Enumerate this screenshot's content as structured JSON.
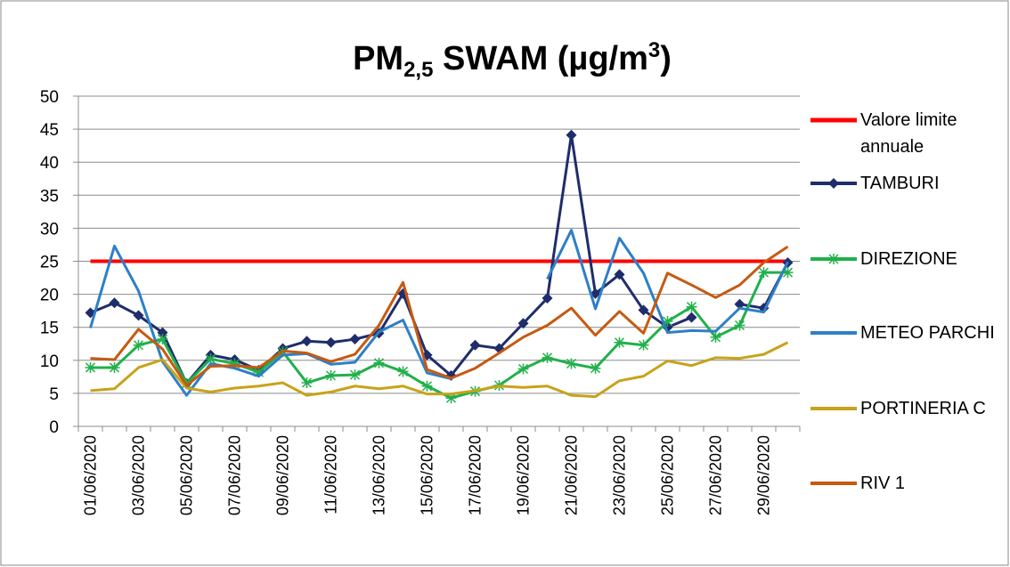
{
  "chart_data": {
    "type": "line",
    "title": [
      "PM",
      "2,5",
      " SWAM  (µg/m",
      "3",
      ")"
    ],
    "categories": [
      "01/06/2020",
      null,
      "03/06/2020",
      null,
      "05/06/2020",
      null,
      "07/06/2020",
      null,
      "09/06/2020",
      null,
      "11/06/2020",
      null,
      "13/06/2020",
      null,
      "15/06/2020",
      null,
      "17/06/2020",
      null,
      "19/06/2020",
      null,
      "21/06/2020",
      null,
      "23/06/2020",
      null,
      "25/06/2020",
      null,
      "27/06/2020",
      null,
      "29/06/2020",
      null
    ],
    "ylim": [
      0,
      50
    ],
    "yticks": [
      0,
      5,
      10,
      15,
      20,
      25,
      30,
      35,
      40,
      45,
      50
    ],
    "grid": true,
    "legend": "right",
    "series": [
      {
        "name": "Valore limite annuale",
        "color": "#ff0000",
        "width": 4,
        "marker": null,
        "values": [
          25,
          25,
          25,
          25,
          25,
          25,
          25,
          25,
          25,
          25,
          25,
          25,
          25,
          25,
          25,
          25,
          25,
          25,
          25,
          25,
          25,
          25,
          25,
          25,
          25,
          25,
          25,
          25,
          25,
          25
        ]
      },
      {
        "name": "TAMBURI",
        "color": "#1f2d6b",
        "width": 3,
        "marker": "diamond",
        "values": [
          17.2,
          18.7,
          16.8,
          14.2,
          6.5,
          10.8,
          10.1,
          8.5,
          11.8,
          12.9,
          12.7,
          13.2,
          14.1,
          20.1,
          10.8,
          7.7,
          12.3,
          11.8,
          15.6,
          19.4,
          44.1,
          20.1,
          23,
          17.6,
          15,
          16.5,
          null,
          18.5,
          17.9,
          24.8
        ]
      },
      {
        "name": "DIREZIONE",
        "color": "#21b04b",
        "width": 3,
        "marker": "asterisk",
        "values": [
          8.9,
          8.9,
          12.3,
          13.2,
          6.5,
          10.2,
          9.5,
          8.2,
          11.3,
          6.6,
          7.7,
          7.8,
          9.6,
          8.3,
          6.1,
          4.3,
          5.3,
          6.2,
          8.7,
          10.4,
          9.5,
          8.8,
          12.7,
          12.3,
          15.9,
          18.1,
          13.5,
          15.3,
          23.3,
          23.3
        ]
      },
      {
        "name": "METEO PARCHI",
        "color": "#2e7fc7",
        "width": 3,
        "marker": null,
        "values": [
          14.9,
          27.3,
          20.5,
          9.8,
          4.7,
          9.5,
          8.8,
          7.6,
          10.8,
          11.0,
          9.4,
          9.7,
          14.3,
          16.1,
          8.1,
          7.2,
          null,
          null,
          null,
          22.3,
          29.7,
          17.8,
          28.5,
          23.2,
          14.2,
          14.5,
          14.4,
          17.9,
          17.3,
          24.9
        ]
      },
      {
        "name": "PORTINERIA C",
        "color": "#c9a21a",
        "width": 3,
        "marker": null,
        "values": [
          5.4,
          5.7,
          8.9,
          10.1,
          5.8,
          5.2,
          5.8,
          6.1,
          6.6,
          4.7,
          5.2,
          6.1,
          5.7,
          6.1,
          4.9,
          4.9,
          5.4,
          6.1,
          5.9,
          6.1,
          4.7,
          4.5,
          6.9,
          7.6,
          9.9,
          9.2,
          10.4,
          10.3,
          10.9,
          12.7
        ]
      },
      {
        "name": "RIV 1",
        "color": "#c55a11",
        "width": 3,
        "marker": null,
        "values": [
          10.3,
          10.1,
          14.7,
          11.7,
          6.2,
          9.1,
          9.2,
          8.9,
          11.4,
          11.1,
          9.8,
          10.9,
          15.3,
          21.8,
          8.6,
          7.3,
          8.8,
          11.1,
          13.5,
          15.3,
          17.9,
          13.8,
          17.4,
          14.1,
          23.2,
          21.4,
          19.5,
          21.4,
          24.8,
          27.2
        ]
      }
    ]
  }
}
